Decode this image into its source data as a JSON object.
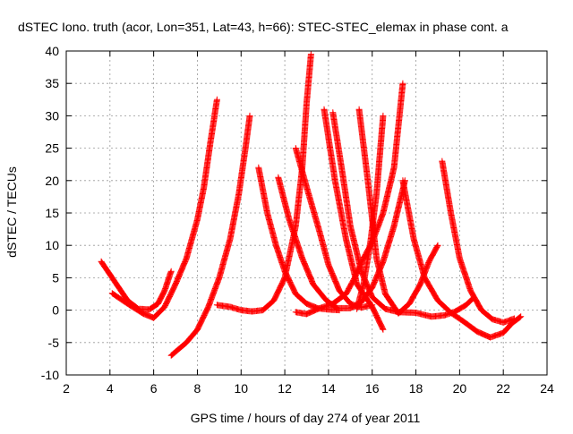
{
  "chart_data": {
    "type": "scatter",
    "title": "dSTEC Iono. truth (acor, Lon=351, Lat=43, h=66): STEC-STEC_elemax in phase cont. a",
    "xlabel": "GPS time / hours of day 274 of year 2011",
    "ylabel": "dSTEC  / TECUs",
    "xlim": [
      2,
      24
    ],
    "ylim": [
      -10,
      40
    ],
    "xticks": [
      2,
      4,
      6,
      8,
      10,
      12,
      14,
      16,
      18,
      20,
      22,
      24
    ],
    "yticks": [
      -10,
      -5,
      0,
      5,
      10,
      15,
      20,
      25,
      30,
      35,
      40
    ],
    "grid": true,
    "marker": "+",
    "color": "#ff0000",
    "series": [
      {
        "x": [
          3.6,
          4.2,
          4.8,
          5.3,
          5.8,
          6.2,
          6.5,
          6.8
        ],
        "y": [
          7.5,
          4.5,
          1.5,
          0.2,
          0.1,
          1.0,
          3.0,
          6.0
        ]
      },
      {
        "x": [
          4.1,
          4.8,
          5.5,
          6.0,
          6.5,
          7.0,
          7.5,
          8.0,
          8.3,
          8.6,
          8.9
        ],
        "y": [
          2.6,
          1.0,
          -0.5,
          -1.2,
          0.5,
          4.0,
          8.0,
          14.0,
          19.0,
          26.0,
          32.5
        ]
      },
      {
        "x": [
          6.8,
          7.5,
          8.0,
          8.5,
          9.0,
          9.5,
          9.9,
          10.2,
          10.4
        ],
        "y": [
          -7.0,
          -5.0,
          -3.0,
          0.5,
          5.0,
          11.0,
          18.0,
          25.0,
          30.0
        ]
      },
      {
        "x": [
          8.9,
          9.5,
          10.0,
          10.5,
          11.0,
          11.5,
          12.0,
          12.5,
          12.8,
          13.0,
          13.2
        ],
        "y": [
          0.8,
          0.5,
          0.0,
          -0.2,
          0.0,
          1.5,
          5.0,
          13.0,
          22.0,
          32.0,
          39.5
        ]
      },
      {
        "x": [
          10.8,
          11.2,
          11.6,
          12.0,
          12.5,
          13.0,
          13.5,
          14.0,
          14.5
        ],
        "y": [
          22.0,
          15.0,
          10.0,
          6.0,
          2.5,
          1.0,
          0.3,
          0.1,
          0.0
        ]
      },
      {
        "x": [
          11.7,
          12.2,
          12.8,
          13.3,
          13.9,
          14.4,
          15.0,
          15.5,
          16.0,
          16.5,
          17.0,
          17.5
        ],
        "y": [
          20.5,
          14.0,
          8.0,
          4.0,
          1.5,
          0.3,
          0.3,
          1.2,
          3.5,
          7.5,
          13.0,
          20.0
        ]
      },
      {
        "x": [
          12.5,
          13.0,
          13.6,
          14.2,
          14.8,
          15.2,
          15.6,
          16.0,
          16.5,
          17.0,
          17.4
        ],
        "y": [
          -0.3,
          -0.6,
          0.3,
          1.0,
          2.5,
          5.0,
          8.0,
          10.5,
          15.0,
          22.0,
          35.0
        ]
      },
      {
        "x": [
          12.5,
          13.0,
          13.6,
          14.0,
          14.5,
          15.0,
          15.5,
          16.0
        ],
        "y": [
          25.0,
          19.0,
          12.0,
          7.0,
          3.0,
          1.0,
          0.4,
          0.8
        ]
      },
      {
        "x": [
          13.8,
          14.3,
          14.8,
          15.3,
          16.0,
          16.5
        ],
        "y": [
          31.0,
          20.0,
          11.0,
          4.0,
          0.5,
          -3.0
        ]
      },
      {
        "x": [
          14.2,
          14.6,
          15.0,
          15.5,
          16.0,
          16.6,
          17.2,
          18.0,
          18.7,
          19.3,
          19.8,
          20.3,
          20.6
        ],
        "y": [
          30.5,
          22.0,
          13.0,
          6.0,
          2.0,
          0.2,
          -0.3,
          -0.4,
          -1.0,
          -0.8,
          -0.2,
          0.8,
          1.8
        ]
      },
      {
        "x": [
          15.4,
          15.8,
          16.2,
          16.6,
          17.2,
          17.7,
          18.2,
          18.6,
          19.0
        ],
        "y": [
          31.0,
          20.0,
          8.0,
          2.5,
          -0.5,
          1.0,
          4.0,
          7.5,
          10.0
        ]
      },
      {
        "x": [
          15.3,
          15.6,
          15.9,
          16.2,
          16.5
        ],
        "y": [
          0.2,
          4.0,
          10.0,
          18.0,
          30.0
        ]
      },
      {
        "x": [
          17.4,
          17.9,
          18.4,
          19.0,
          19.6,
          20.2,
          20.8,
          21.4,
          22.0,
          22.4,
          22.8
        ],
        "y": [
          20.0,
          11.0,
          5.0,
          1.5,
          -0.4,
          -1.8,
          -3.3,
          -4.2,
          -3.5,
          -2.0,
          -1.0
        ]
      },
      {
        "x": [
          19.2,
          19.6,
          20.0,
          20.5,
          21.0,
          21.5,
          22.0,
          22.5
        ],
        "y": [
          23.0,
          15.0,
          8.0,
          3.0,
          0.0,
          -1.4,
          -1.9,
          -1.3
        ]
      }
    ]
  }
}
